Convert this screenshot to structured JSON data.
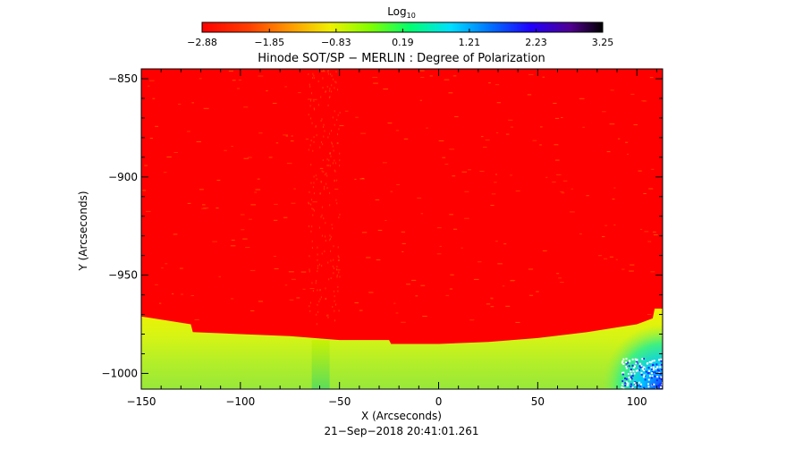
{
  "colorbar": {
    "title_main": "Log",
    "title_sub": "10",
    "tick_labels": [
      "−2.88",
      "−1.85",
      "−0.83",
      "0.19",
      "1.21",
      "2.23",
      "3.25"
    ]
  },
  "chart_data": {
    "type": "heatmap",
    "title": "Hinode SOT/SP − MERLIN : Degree of Polarization",
    "xlabel": "X (Arcseconds)",
    "ylabel": "Y (Arcseconds)",
    "xlim": [
      -150,
      113
    ],
    "ylim": [
      -1008,
      -845
    ],
    "x_ticks": [
      -150,
      -100,
      -50,
      0,
      50,
      100
    ],
    "y_ticks": [
      -850,
      -900,
      -950,
      -1000
    ],
    "x_tick_labels": [
      "−150",
      "−100",
      "−50",
      "0",
      "50",
      "100"
    ],
    "y_tick_labels": [
      "−850",
      "−900",
      "−950",
      "−1000"
    ],
    "colorbar_range": [
      -2.88,
      3.25
    ],
    "colorbar_ticks": [
      -2.88,
      -1.85,
      -0.83,
      0.19,
      1.21,
      2.23,
      3.25
    ],
    "limb_boundary": [
      {
        "x": -150,
        "y": -971
      },
      {
        "x": -125,
        "y": -975
      },
      {
        "x": -124,
        "y": -979
      },
      {
        "x": -100,
        "y": -980
      },
      {
        "x": -75,
        "y": -981
      },
      {
        "x": -50,
        "y": -983
      },
      {
        "x": -25,
        "y": -983
      },
      {
        "x": -24,
        "y": -985
      },
      {
        "x": 0,
        "y": -985
      },
      {
        "x": 25,
        "y": -984
      },
      {
        "x": 50,
        "y": -982
      },
      {
        "x": 75,
        "y": -979
      },
      {
        "x": 100,
        "y": -975
      },
      {
        "x": 108,
        "y": -972
      },
      {
        "x": 109,
        "y": -967
      },
      {
        "x": 113,
        "y": -967
      }
    ],
    "disk_value": -2.88,
    "offlimb_value_range": [
      -1.6,
      0.2
    ],
    "annotation": "21−Sep−2018 20:41:01.261"
  }
}
